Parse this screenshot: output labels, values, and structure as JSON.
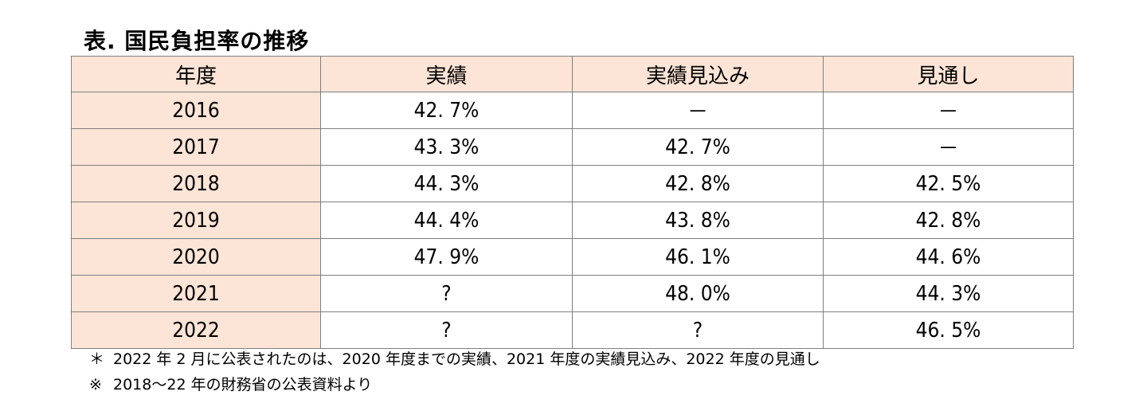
{
  "title": "表.  国民負担率の推移",
  "table": {
    "headers": [
      "年度",
      "実績",
      "実績見込み",
      "見通し"
    ],
    "rows": [
      [
        "2016",
        "42. 7%",
        "－",
        "－"
      ],
      [
        "2017",
        "43. 3%",
        "42. 7%",
        "－"
      ],
      [
        "2018",
        "44. 3%",
        "42. 8%",
        "42. 5%"
      ],
      [
        "2019",
        "44. 4%",
        "43. 8%",
        "42. 8%"
      ],
      [
        "2020",
        "47. 9%",
        "46. 1%",
        "44. 6%"
      ],
      [
        "2021",
        "?",
        "48. 0%",
        "44. 3%"
      ],
      [
        "2022",
        "?",
        "?",
        "46. 5%"
      ]
    ]
  },
  "notes": [
    {
      "mark": "＊",
      "text": "2022 年 2 月に公表されたのは、2020 年度までの実績、2021 年度の実績見込み、2022 年度の見通し"
    },
    {
      "mark": "※",
      "text": "2018～22 年の財務省の公表資料より"
    }
  ],
  "colors": {
    "header_and_year_bg": "#fce4d6",
    "border": "#7f7f7f"
  }
}
